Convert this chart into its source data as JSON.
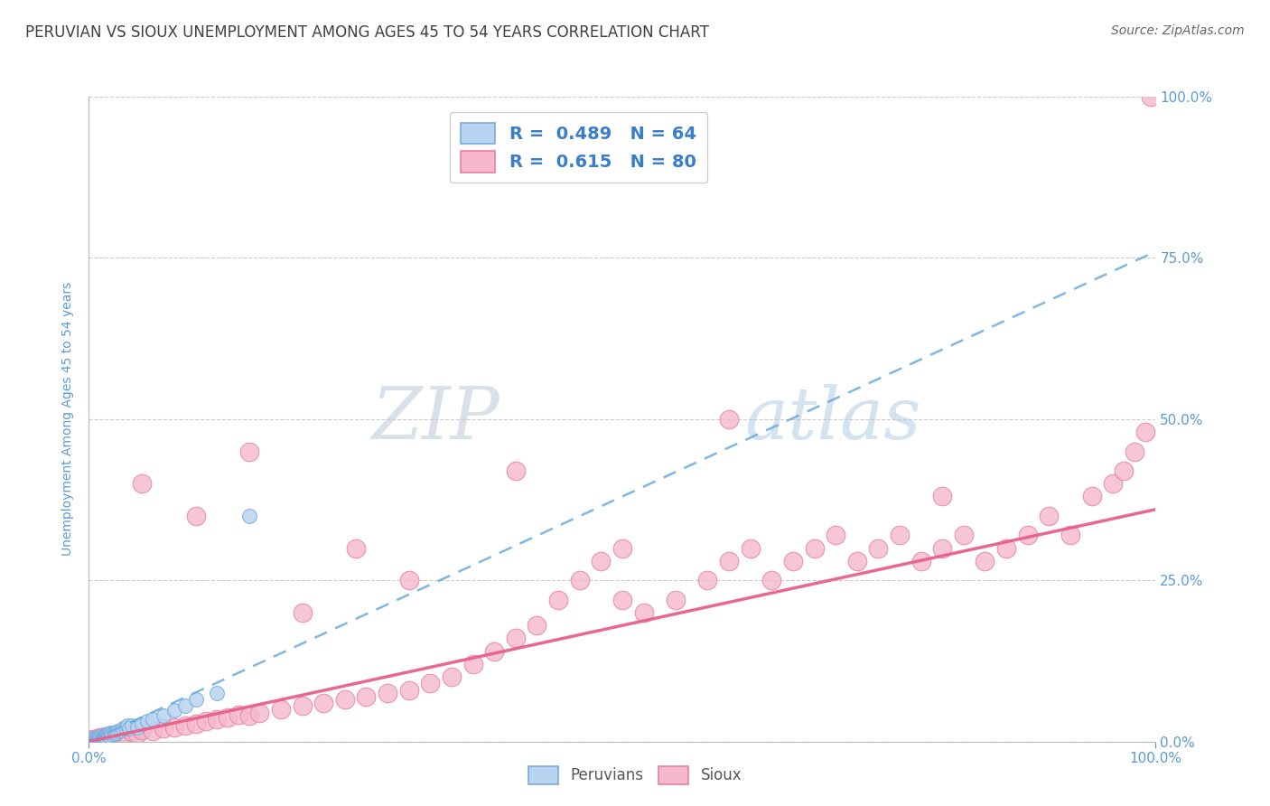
{
  "title": "PERUVIAN VS SIOUX UNEMPLOYMENT AMONG AGES 45 TO 54 YEARS CORRELATION CHART",
  "source": "Source: ZipAtlas.com",
  "ylabel": "Unemployment Among Ages 45 to 54 years",
  "xlim": [
    0.0,
    1.0
  ],
  "ylim": [
    0.0,
    1.0
  ],
  "xtick_labels": [
    "0.0%",
    "100.0%"
  ],
  "ytick_labels": [
    "0.0%",
    "25.0%",
    "50.0%",
    "75.0%",
    "100.0%"
  ],
  "ytick_positions": [
    0.0,
    0.25,
    0.5,
    0.75,
    1.0
  ],
  "watermark_zip": "ZIP",
  "watermark_atlas": "atlas",
  "legend_blue_r": "R =  0.489",
  "legend_blue_n": "N = 64",
  "legend_pink_r": "R =  0.615",
  "legend_pink_n": "N = 80",
  "blue_fill": "#b8d4f0",
  "pink_fill": "#f5b8cc",
  "blue_edge": "#7aabdc",
  "pink_edge": "#e880a0",
  "blue_line_color": "#6aaae0",
  "pink_line_color": "#e86088",
  "title_color": "#404040",
  "axis_label_color": "#5b9bd5",
  "source_color": "#666666",
  "grid_color": "#cccccc",
  "peruvians_x": [
    0.002,
    0.003,
    0.004,
    0.004,
    0.005,
    0.005,
    0.005,
    0.006,
    0.006,
    0.007,
    0.007,
    0.007,
    0.008,
    0.008,
    0.008,
    0.009,
    0.009,
    0.009,
    0.01,
    0.01,
    0.01,
    0.011,
    0.011,
    0.012,
    0.012,
    0.012,
    0.013,
    0.013,
    0.014,
    0.014,
    0.015,
    0.015,
    0.016,
    0.016,
    0.017,
    0.017,
    0.018,
    0.018,
    0.019,
    0.02,
    0.02,
    0.021,
    0.022,
    0.023,
    0.024,
    0.025,
    0.026,
    0.028,
    0.03,
    0.032,
    0.034,
    0.036,
    0.038,
    0.04,
    0.045,
    0.05,
    0.055,
    0.06,
    0.07,
    0.08,
    0.09,
    0.1,
    0.12,
    0.15
  ],
  "peruvians_y": [
    0.002,
    0.001,
    0.003,
    0.002,
    0.004,
    0.002,
    0.005,
    0.003,
    0.004,
    0.003,
    0.005,
    0.002,
    0.004,
    0.006,
    0.003,
    0.005,
    0.007,
    0.004,
    0.006,
    0.004,
    0.008,
    0.005,
    0.007,
    0.006,
    0.004,
    0.009,
    0.007,
    0.005,
    0.008,
    0.006,
    0.009,
    0.007,
    0.01,
    0.008,
    0.011,
    0.007,
    0.012,
    0.009,
    0.01,
    0.013,
    0.008,
    0.012,
    0.011,
    0.014,
    0.012,
    0.015,
    0.013,
    0.016,
    0.018,
    0.02,
    0.022,
    0.025,
    0.02,
    0.025,
    0.022,
    0.028,
    0.032,
    0.035,
    0.04,
    0.048,
    0.055,
    0.065,
    0.075,
    0.35
  ],
  "sioux_x": [
    0.002,
    0.004,
    0.006,
    0.008,
    0.01,
    0.012,
    0.015,
    0.018,
    0.02,
    0.025,
    0.028,
    0.032,
    0.035,
    0.04,
    0.045,
    0.05,
    0.06,
    0.07,
    0.08,
    0.09,
    0.1,
    0.11,
    0.12,
    0.13,
    0.14,
    0.15,
    0.16,
    0.18,
    0.2,
    0.22,
    0.24,
    0.26,
    0.28,
    0.3,
    0.32,
    0.34,
    0.36,
    0.38,
    0.4,
    0.42,
    0.44,
    0.46,
    0.48,
    0.5,
    0.52,
    0.55,
    0.58,
    0.6,
    0.62,
    0.64,
    0.66,
    0.68,
    0.7,
    0.72,
    0.74,
    0.76,
    0.78,
    0.8,
    0.82,
    0.84,
    0.86,
    0.88,
    0.9,
    0.92,
    0.94,
    0.96,
    0.97,
    0.98,
    0.99,
    0.995,
    0.05,
    0.1,
    0.15,
    0.2,
    0.25,
    0.3,
    0.4,
    0.5,
    0.6,
    0.8
  ],
  "sioux_y": [
    0.002,
    0.004,
    0.003,
    0.005,
    0.006,
    0.004,
    0.008,
    0.007,
    0.009,
    0.01,
    0.008,
    0.012,
    0.01,
    0.015,
    0.012,
    0.018,
    0.016,
    0.02,
    0.022,
    0.025,
    0.028,
    0.032,
    0.035,
    0.038,
    0.042,
    0.04,
    0.045,
    0.05,
    0.055,
    0.06,
    0.065,
    0.07,
    0.075,
    0.08,
    0.09,
    0.1,
    0.12,
    0.14,
    0.16,
    0.18,
    0.22,
    0.25,
    0.28,
    0.3,
    0.2,
    0.22,
    0.25,
    0.28,
    0.3,
    0.25,
    0.28,
    0.3,
    0.32,
    0.28,
    0.3,
    0.32,
    0.28,
    0.3,
    0.32,
    0.28,
    0.3,
    0.32,
    0.35,
    0.32,
    0.38,
    0.4,
    0.42,
    0.45,
    0.48,
    1.0,
    0.4,
    0.35,
    0.45,
    0.2,
    0.3,
    0.25,
    0.42,
    0.22,
    0.5,
    0.38
  ],
  "blue_trendline_x0": 0.0,
  "blue_trendline_y0": 0.0,
  "blue_trendline_x1": 1.0,
  "blue_trendline_y1": 0.76,
  "pink_trendline_x0": 0.0,
  "pink_trendline_y0": 0.0,
  "pink_trendline_x1": 1.0,
  "pink_trendline_y1": 0.36
}
